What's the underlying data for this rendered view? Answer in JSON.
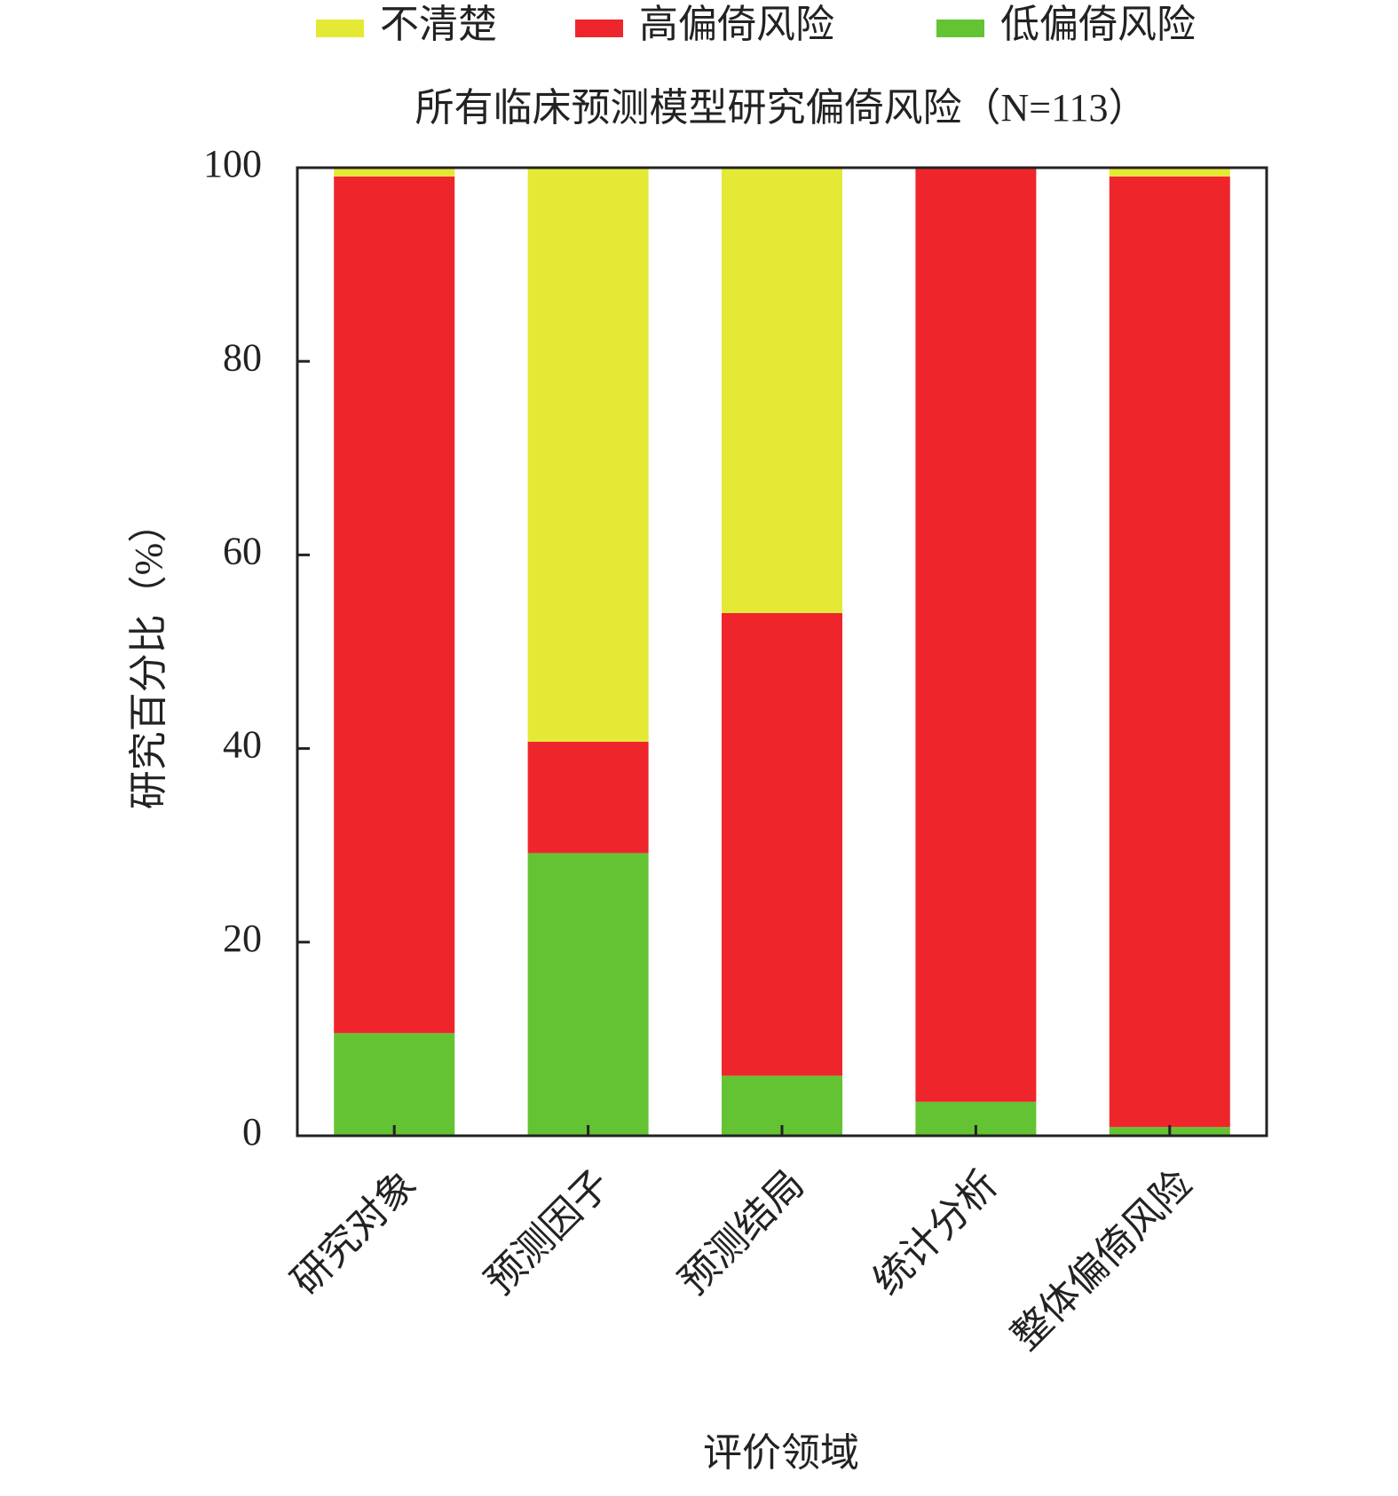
{
  "chart_data": {
    "type": "stacked_bar",
    "title": "所有临床预测模型研究偏倚风险（N=113）",
    "x_label": "评价领域",
    "y_label": "研究百分比（%）",
    "categories": [
      "研究对象",
      "预测因子",
      "预测结局",
      "统计分析",
      "整体偏倚风险"
    ],
    "series": [
      {
        "name": "不清楚",
        "color": "#e4e936",
        "values": [
          0.9,
          59.3,
          46.0,
          0,
          0.9
        ]
      },
      {
        "name": "高偏倚风险",
        "color": "#ee262c",
        "values": [
          88.5,
          11.5,
          47.8,
          96.5,
          98.2
        ]
      },
      {
        "name": "低偏倚风险",
        "color": "#64c332",
        "values": [
          10.6,
          29.2,
          6.2,
          3.5,
          0.9
        ]
      }
    ],
    "ylim": [
      0,
      100
    ],
    "yticks": [
      0,
      20,
      40,
      60,
      80,
      100
    ],
    "grid": false
  }
}
